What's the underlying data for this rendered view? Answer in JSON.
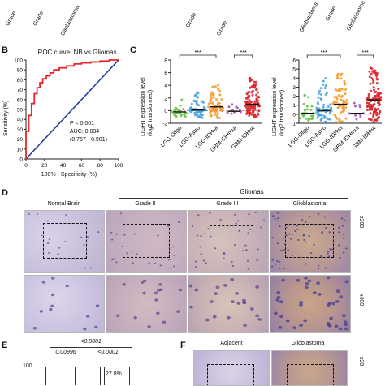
{
  "top_strip": {
    "labels_left": [
      "Grade",
      "Grade",
      "Glioblastoma"
    ],
    "labels_right": [
      "Grade",
      "Grade",
      "Glioblastoma"
    ]
  },
  "panel_letters": {
    "b": "B",
    "c": "C",
    "d": "D",
    "e": "E",
    "f": "F"
  },
  "panel_b": {
    "title": "ROC curve: NB vs Gliomas",
    "ylabel": "Sensitivity (%)",
    "xlabel": "100% - Specificity (%)",
    "stats": [
      "P < 0.001",
      "AUC: 0.834",
      "(0.767 - 0.901)"
    ],
    "colors": {
      "roc": "#e8262a",
      "reference": "#1d3fa0"
    }
  },
  "panel_c": {
    "ylabel_line1": "LIGHT expression level",
    "ylabel_line2": "(log2 transformed)",
    "significance": [
      "***",
      "***",
      "***",
      "***"
    ],
    "categories_left": [
      "LGG-Oligo",
      "LGG-Astro",
      "LGG-IDHwt",
      "GBM-IDHmut",
      "GBM-IDHwt"
    ],
    "categories_right": [
      "LGG-Oligo",
      "LGG-Astro",
      "LGG-IDHwt",
      "GBM-IDHmut",
      "GBM-IDHwt"
    ],
    "colors": [
      "#6cc24a",
      "#4aa3df",
      "#f39c32",
      "#9b59b6",
      "#d9262e"
    ]
  },
  "panel_d": {
    "group_label": "Gliomas",
    "columns": [
      "Normal Brain",
      "Grade II",
      "Grade III",
      "Glioblastoma"
    ],
    "magnifications": [
      "x200",
      "x400"
    ]
  },
  "panel_e": {
    "pvalues_top": [
      "<0.0001"
    ],
    "pvalues_mid": [
      "0.00996",
      "<0.0001"
    ],
    "y_tick": "100",
    "percent_label": "27.8%"
  },
  "panel_f": {
    "columns": [
      "Adjacent",
      "Glioblastoma"
    ],
    "magnification": "x20"
  },
  "chart_data": [
    {
      "type": "line",
      "title": "ROC curve: NB vs Gliomas",
      "xlabel": "100% - Specificity (%)",
      "ylabel": "Sensitivity (%)",
      "xlim": [
        0,
        100
      ],
      "ylim": [
        0,
        100
      ],
      "x_ticks": [
        "0",
        "20",
        "40",
        "60",
        "80",
        "100"
      ],
      "y_ticks": [
        "0",
        "10",
        "20",
        "30",
        "40",
        "50",
        "60",
        "70",
        "80",
        "90",
        "100"
      ],
      "series": [
        {
          "x": [
            0,
            0,
            3,
            3,
            6,
            6,
            9,
            9,
            12,
            12,
            15,
            15,
            18,
            18,
            22,
            22,
            26,
            26,
            30,
            30,
            36,
            36,
            44,
            44,
            52,
            52,
            60,
            60,
            70,
            70,
            80,
            80,
            90,
            90,
            100
          ],
          "y": [
            0,
            28,
            28,
            44,
            44,
            56,
            56,
            66,
            66,
            72,
            72,
            77,
            77,
            81,
            81,
            84,
            84,
            87,
            87,
            90,
            90,
            92,
            92,
            94,
            94,
            96,
            96,
            97,
            97,
            98,
            98,
            99,
            99,
            100,
            100
          ]
        },
        {
          "x": [
            0,
            100
          ],
          "y": [
            0,
            100
          ]
        }
      ]
    },
    {
      "type": "scatter",
      "ylabel": "LIGHT expression level (log2 transformed)",
      "categories": [
        "LGG-Oligo",
        "LGG-Astro",
        "LGG-IDHwt",
        "GBM-IDHmut",
        "GBM-IDHwt"
      ],
      "ylim": [
        -2,
        8
      ],
      "y_ticks": [
        "-2",
        "0",
        "2",
        "4",
        "6",
        "8"
      ],
      "medians": [
        -0.2,
        0.1,
        0.6,
        -0.1,
        1.0
      ],
      "ranges": [
        [
          -1.0,
          2.0
        ],
        [
          -1.2,
          3.2
        ],
        [
          -1.2,
          4.3
        ],
        [
          -0.8,
          1.2
        ],
        [
          -1.2,
          5.2
        ]
      ]
    },
    {
      "type": "scatter",
      "ylabel": "LIGHT expression level (log2 transformed)",
      "categories": [
        "LGG-Oligo",
        "LGG-Astro",
        "LGG-IDHwt",
        "GBM-IDHmut",
        "GBM-IDHwt"
      ],
      "ylim": [
        -1,
        6
      ],
      "y_ticks": [
        "-1",
        "0",
        "1",
        "2",
        "3",
        "4",
        "5",
        "6"
      ],
      "medians": [
        0.1,
        0.4,
        1.1,
        0.1,
        1.6
      ],
      "ranges": [
        [
          -0.8,
          2.2
        ],
        [
          -0.9,
          4.0
        ],
        [
          -0.9,
          4.6
        ],
        [
          -0.6,
          1.4
        ],
        [
          -0.9,
          5.4
        ]
      ]
    }
  ]
}
